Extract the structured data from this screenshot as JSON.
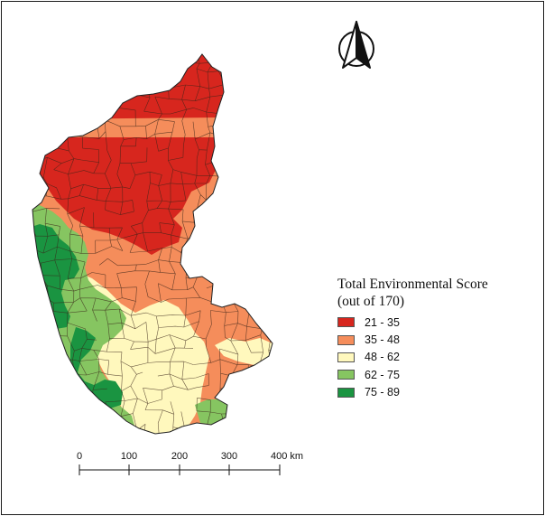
{
  "legend": {
    "title_line1": "Total Environmental Score",
    "title_line2": "(out of 170)",
    "classes": [
      {
        "label": "21 - 35",
        "color": "#d7261e"
      },
      {
        "label": "35 - 48",
        "color": "#f58d5b"
      },
      {
        "label": "48 - 62",
        "color": "#fff8bd"
      },
      {
        "label": "62 - 75",
        "color": "#86c561"
      },
      {
        "label": "75 - 89",
        "color": "#1a9441"
      }
    ]
  },
  "scale_bar": {
    "ticks": [
      "0",
      "100",
      "200",
      "300",
      "400 km"
    ]
  },
  "north_arrow": {
    "icon": "north-arrow-icon"
  },
  "map": {
    "region_colors": {
      "c1": "#d7261e",
      "c2": "#f58d5b",
      "c3": "#fff8bd",
      "c4": "#86c561",
      "c5": "#1a9441"
    }
  }
}
